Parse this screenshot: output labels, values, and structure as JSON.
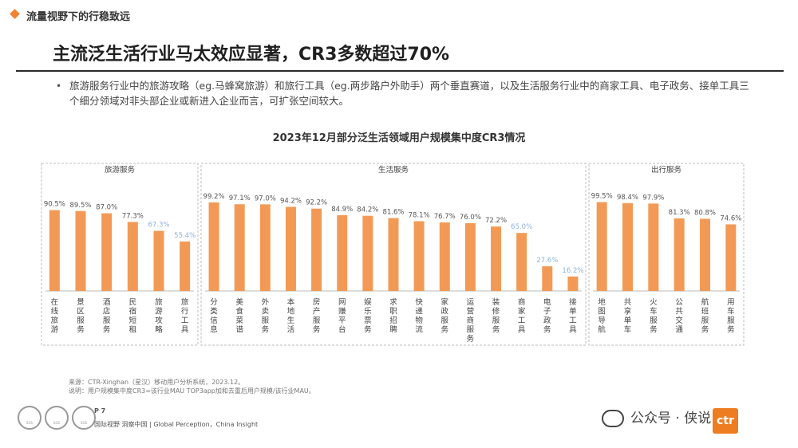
{
  "header": {
    "section_title": "流量视野下的行稳致远"
  },
  "slide": {
    "title": "主流泛生活行业马太效应显著，CR3多数超过70%",
    "bullet": "旅游服务行业中的旅游攻略（eg.马蜂窝旅游）和旅行工具（eg.两步路户外助手）两个垂直赛道，以及生活服务行业中的商家工具、电子政务、接单工具三个细分领域对非头部企业或新进入企业而言，可扩张空间较大。"
  },
  "chart_data": {
    "type": "bar",
    "title": "2023年12月部分泛生活领域用户规模集中度CR3情况",
    "ylim": [
      0,
      100
    ],
    "colors": {
      "bar": "#f29a55",
      "label_dark": "#555555",
      "label_light": "#8fb3d9",
      "group_border": "#bdbdbd"
    },
    "groups": [
      {
        "name": "旅游服务",
        "categories": [
          "在线旅游",
          "景区服务",
          "酒店服务",
          "民宿短租",
          "旅游攻略",
          "旅行工具"
        ],
        "values": [
          90.5,
          89.5,
          87.0,
          77.3,
          67.3,
          55.4
        ],
        "labels": [
          "90.5%",
          "89.5%",
          "87.0%",
          "77.3%",
          "67.3%",
          "55.4%"
        ],
        "highlight": [
          false,
          false,
          false,
          false,
          true,
          true
        ]
      },
      {
        "name": "生活服务",
        "categories": [
          "分类信息",
          "美食菜谱",
          "外卖服务",
          "本地生活",
          "房产服务",
          "网赚平台",
          "娱乐票务",
          "求职招聘",
          "快递物流",
          "家政服务",
          "运营商服务",
          "装修服务",
          "商家工具",
          "电子政务",
          "接单工具"
        ],
        "values": [
          99.2,
          97.1,
          97.0,
          94.2,
          92.2,
          84.9,
          84.2,
          81.6,
          78.1,
          76.7,
          76.0,
          72.2,
          65.0,
          27.6,
          16.2
        ],
        "labels": [
          "99.2%",
          "97.1%",
          "97.0%",
          "94.2%",
          "92.2%",
          "84.9%",
          "84.2%",
          "81.6%",
          "78.1%",
          "76.7%",
          "76.0%",
          "72.2%",
          "65.0%",
          "27.6%",
          "16.2%"
        ],
        "highlight": [
          false,
          false,
          false,
          false,
          false,
          false,
          false,
          false,
          false,
          false,
          false,
          false,
          true,
          true,
          true
        ]
      },
      {
        "name": "出行服务",
        "categories": [
          "地图导航",
          "共享单车",
          "火车服务",
          "公共交通",
          "航班服务",
          "用车服务"
        ],
        "values": [
          99.5,
          98.4,
          97.9,
          81.3,
          80.8,
          74.6
        ],
        "labels": [
          "99.5%",
          "98.4%",
          "97.9%",
          "81.3%",
          "80.8%",
          "74.6%"
        ],
        "highlight": [
          false,
          false,
          false,
          false,
          false,
          false
        ]
      }
    ]
  },
  "notes": {
    "source": "来源：CTR-Xinghan（星汉）移动用户分析系统，2023.12。",
    "explain": "说明：用户规模集中度CR3=该行业MAU TOP3app加和去重后用户规模/该行业MAU。"
  },
  "footer": {
    "page": "P 7",
    "tagline": "国际视野  洞察中国 |  Global Perception，China Insight",
    "seals": [
      "SGS",
      "SGS",
      "SGS"
    ],
    "wechat_label": "公众号 · 侠说",
    "logo_text": "ctr"
  }
}
